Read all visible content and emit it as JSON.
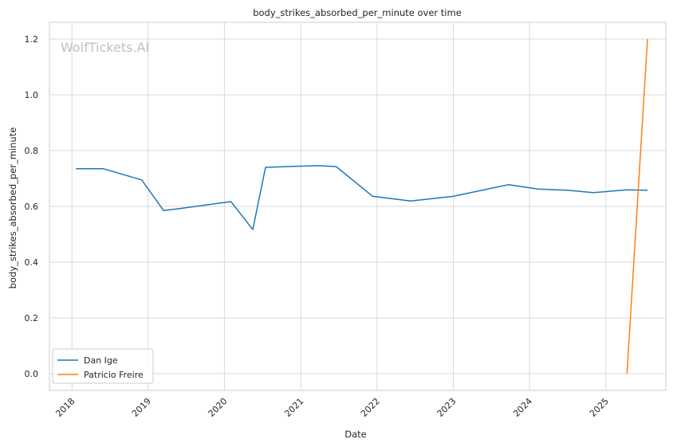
{
  "chart_data": {
    "type": "line",
    "title": "body_strikes_absorbed_per_minute over time",
    "xlabel": "Date",
    "ylabel": "body_strikes_absorbed_per_minute",
    "watermark": "WolfTickets.AI",
    "x_ticks": [
      "2018",
      "2019",
      "2020",
      "2021",
      "2022",
      "2023",
      "2024",
      "2025"
    ],
    "y_ticks": [
      "0.0",
      "0.2",
      "0.4",
      "0.6",
      "0.8",
      "1.0",
      "1.2"
    ],
    "xlim": [
      "2017-09-15",
      "2025-10-15"
    ],
    "ylim": [
      -0.06,
      1.26
    ],
    "grid": true,
    "legend_position": "bottom-left",
    "series": [
      {
        "name": "Dan Ige",
        "color": "#1f77b4",
        "points": [
          [
            "2018-01-20",
            0.735
          ],
          [
            "2018-06-01",
            0.735
          ],
          [
            "2018-12-01",
            0.695
          ],
          [
            "2019-03-16",
            0.585
          ],
          [
            "2019-06-01",
            0.592
          ],
          [
            "2020-02-01",
            0.617
          ],
          [
            "2020-05-16",
            0.517
          ],
          [
            "2020-07-16",
            0.74
          ],
          [
            "2021-03-20",
            0.746
          ],
          [
            "2021-06-19",
            0.743
          ],
          [
            "2021-12-11",
            0.636
          ],
          [
            "2022-06-11",
            0.619
          ],
          [
            "2023-01-01",
            0.636
          ],
          [
            "2023-09-23",
            0.678
          ],
          [
            "2024-02-10",
            0.662
          ],
          [
            "2024-07-01",
            0.658
          ],
          [
            "2024-11-01",
            0.649
          ],
          [
            "2025-04-12",
            0.659
          ],
          [
            "2025-07-19",
            0.658
          ]
        ]
      },
      {
        "name": "Patricio Freire",
        "color": "#ff7f0e",
        "points": [
          [
            "2025-04-12",
            0.0
          ],
          [
            "2025-07-19",
            1.2
          ]
        ]
      }
    ]
  }
}
